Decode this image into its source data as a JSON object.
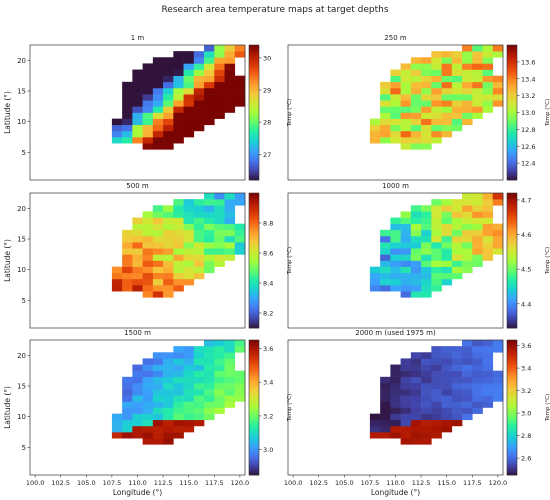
{
  "figure": {
    "suptitle": "Research area temperature maps at target depths"
  },
  "colormap": [
    "#30123b",
    "#4145ab",
    "#4675ed",
    "#39a2fc",
    "#1bcfd4",
    "#24eca6",
    "#61fc6c",
    "#a4fc3b",
    "#d1e834",
    "#f3c63a",
    "#fe9b2d",
    "#f36315",
    "#d93806",
    "#b11901",
    "#7a0402"
  ],
  "chart_data": [
    {
      "type": "heatmap",
      "title": "1 m",
      "xlim": [
        99.5,
        120.5
      ],
      "ylim": [
        0.5,
        22.5
      ],
      "xticks": [],
      "yticks": [
        "5",
        "10",
        "15",
        "20"
      ],
      "xlabel": "",
      "ylabel": "Latitude (°)",
      "colorbar": {
        "label": "Temp (°C)",
        "range": [
          26.2,
          30.4
        ],
        "ticks": [
          "27",
          "28",
          "29",
          "30"
        ],
        "tick_values": [
          27,
          28,
          29,
          30
        ]
      },
      "field": {
        "base": 28.6,
        "gx": 0.08,
        "gy": -0.05,
        "noise": 0.5,
        "seed": 1
      }
    },
    {
      "type": "heatmap",
      "title": "250 m",
      "xlim": [
        99.5,
        120.5
      ],
      "ylim": [
        0.5,
        22.5
      ],
      "xticks": [],
      "yticks": [],
      "xlabel": "",
      "ylabel": "",
      "colorbar": {
        "label": "Temp (°C)",
        "range": [
          12.2,
          13.8
        ],
        "ticks": [
          "12.4",
          "12.6",
          "12.8",
          "13.0",
          "13.2",
          "13.4",
          "13.6"
        ],
        "tick_values": [
          12.4,
          12.6,
          12.8,
          13.0,
          13.2,
          13.4,
          13.6
        ]
      },
      "field": {
        "base": 13.15,
        "gx": 0.0,
        "gy": 0.0,
        "noise": 0.3,
        "seed": 2
      }
    },
    {
      "type": "heatmap",
      "title": "500 m",
      "xlim": [
        99.5,
        120.5
      ],
      "ylim": [
        0.5,
        22.5
      ],
      "xticks": [],
      "yticks": [
        "5",
        "10",
        "15",
        "20"
      ],
      "xlabel": "",
      "ylabel": "Latitude (°)",
      "colorbar": {
        "label": "Temp (°C)",
        "range": [
          8.1,
          9.0
        ],
        "ticks": [
          "8.2",
          "8.4",
          "8.6",
          "8.8"
        ],
        "tick_values": [
          8.2,
          8.4,
          8.6,
          8.8
        ]
      },
      "field": {
        "base": 8.6,
        "gx": -0.012,
        "gy": -0.008,
        "noise": 0.1,
        "seed": 3
      }
    },
    {
      "type": "heatmap",
      "title": "1000 m",
      "xlim": [
        99.5,
        120.5
      ],
      "ylim": [
        0.5,
        22.5
      ],
      "xticks": [],
      "yticks": [],
      "xlabel": "",
      "ylabel": "",
      "colorbar": {
        "label": "Temp (°C)",
        "range": [
          4.33,
          4.72
        ],
        "ticks": [
          "4.4",
          "4.5",
          "4.6",
          "4.7"
        ],
        "tick_values": [
          4.4,
          4.5,
          4.6,
          4.7
        ]
      },
      "field": {
        "base": 4.5,
        "gx": 0.015,
        "gy": 0.004,
        "noise": 0.05,
        "seed": 4
      }
    },
    {
      "type": "heatmap",
      "title": "1500 m",
      "xlim": [
        99.5,
        120.5
      ],
      "ylim": [
        0.5,
        22.5
      ],
      "xticks": [
        "100.0",
        "102.5",
        "105.0",
        "107.5",
        "110.0",
        "112.5",
        "115.0",
        "117.5",
        "120.0"
      ],
      "yticks": [
        "5",
        "10",
        "15",
        "20"
      ],
      "xlabel": "Longitude (°)",
      "ylabel": "Latitude (°)",
      "colorbar": {
        "label": "Temp (°C)",
        "range": [
          2.85,
          3.65
        ],
        "ticks": [
          "3.0",
          "3.2",
          "3.4",
          "3.6"
        ],
        "tick_values": [
          3.0,
          3.2,
          3.4,
          3.6
        ]
      },
      "field": {
        "base": 3.1,
        "gx": 0.012,
        "gy": -0.006,
        "noise": 0.04,
        "seed": 5,
        "hot_south": 3.62
      }
    },
    {
      "type": "heatmap",
      "title": "2000 m (used 1975 m)",
      "xlim": [
        99.5,
        120.5
      ],
      "ylim": [
        0.5,
        22.5
      ],
      "xticks": [
        "100.0",
        "102.5",
        "105.0",
        "107.5",
        "110.0",
        "112.5",
        "115.0",
        "117.5",
        "120.0"
      ],
      "yticks": [],
      "xlabel": "Longitude (°)",
      "ylabel": "",
      "colorbar": {
        "label": "Temp (°C)",
        "range": [
          2.45,
          3.65
        ],
        "ticks": [
          "2.6",
          "2.8",
          "3.0",
          "3.2",
          "3.4",
          "3.6"
        ],
        "tick_values": [
          2.6,
          2.8,
          3.0,
          3.2,
          3.4,
          3.6
        ]
      },
      "field": {
        "base": 2.55,
        "gx": 0.004,
        "gy": 0.0,
        "noise": 0.03,
        "seed": 6,
        "hot_south": 3.6
      }
    }
  ]
}
